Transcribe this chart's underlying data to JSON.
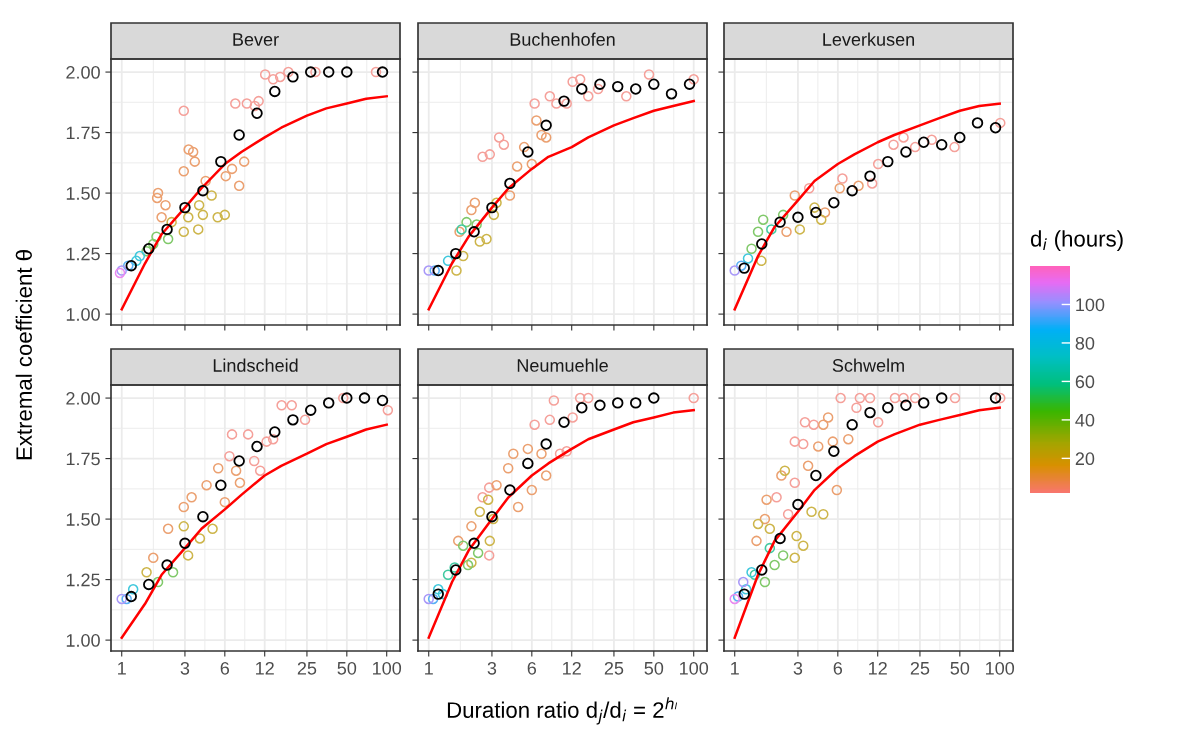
{
  "chart_data": [
    {
      "type": "scatter",
      "title": "Bever",
      "ylabel": "Extremal coefficient θ",
      "log": "x",
      "grid": true,
      "marker": "circle",
      "tick_labels": "y",
      "xlim": [
        0.83,
        126
      ],
      "ylim": [
        0.955,
        2.054
      ],
      "xticks": [
        1,
        3,
        6,
        12,
        25,
        50,
        100
      ],
      "yticks": [
        {
          "value": 1,
          "label": "1.00"
        },
        {
          "value": 1.25,
          "label": "1.25"
        },
        {
          "value": 1.5,
          "label": "1.50"
        },
        {
          "value": 1.75,
          "label": "1.75"
        },
        {
          "value": 2,
          "label": "2.00"
        }
      ],
      "series": [
        {
          "x": [
            2.94,
            7.2,
            8.8,
            10.1,
            10.8,
            12.1,
            13.9,
            15.7,
            18.1,
            29,
            83,
            3.2,
            3.46,
            3.56,
            2.94,
            1.88,
            1.85,
            2.14,
            2.0,
            4.3,
            6.1,
            6.8,
            8.4,
            7.7,
            4.77,
            4.1,
            5.3,
            6.0,
            3.78,
            3.84,
            2.94,
            3.18,
            2.38,
            2.24,
            1.83,
            1.73,
            1.54,
            1.37,
            1.29,
            1.12,
            1.0,
            0.97
          ],
          "values": [
            1.84,
            1.87,
            1.87,
            1.86,
            1.88,
            1.99,
            1.97,
            1.98,
            2.0,
            2.0,
            2.0,
            1.68,
            1.67,
            1.63,
            1.59,
            1.5,
            1.48,
            1.45,
            1.4,
            1.55,
            1.57,
            1.6,
            1.63,
            1.53,
            1.49,
            1.41,
            1.4,
            1.41,
            1.35,
            1.45,
            1.34,
            1.4,
            1.38,
            1.31,
            1.32,
            1.29,
            1.26,
            1.24,
            1.22,
            1.2,
            1.18,
            1.17
          ],
          "colors": [
            "#f5a09a",
            "#f5a09a",
            "#f5a09a",
            "#f5a09a",
            "#f5a09a",
            "#f5a09a",
            "#f5a09a",
            "#f5a09a",
            "#f5a09a",
            "#f5a09a",
            "#f5a09a",
            "#eba070",
            "#eba070",
            "#eba070",
            "#eba070",
            "#eba070",
            "#eba070",
            "#eba070",
            "#eba070",
            "#eba070",
            "#eba070",
            "#eba070",
            "#eba070",
            "#eba070",
            "#cdb54a",
            "#cdb54a",
            "#cdb54a",
            "#cdb54a",
            "#cdb54a",
            "#cdb54a",
            "#cdb54a",
            "#cdb54a",
            "#cdb54a",
            "#80c96a",
            "#80c96a",
            "#80c96a",
            "#80c96a",
            "#40c8dc",
            "#40c8dc",
            "#5ab0f5",
            "#a898f8",
            "#e98af0"
          ]
        },
        {
          "color": "#000000",
          "x": [
            1.18,
            1.6,
            2.2,
            3,
            4.1,
            5.6,
            7.7,
            10.5,
            14.3,
            19.6,
            26.7,
            36.5,
            50,
            93
          ],
          "values": [
            1.2,
            1.27,
            1.35,
            1.44,
            1.51,
            1.63,
            1.74,
            1.83,
            1.92,
            1.98,
            2.0,
            2.0,
            2.0,
            2.0
          ]
        },
        {
          "type": "line",
          "marker": "none",
          "color": "#ff0000",
          "x": [
            1,
            1.5,
            2,
            3,
            4,
            6,
            8,
            12,
            16,
            25,
            35,
            50,
            70,
            100
          ],
          "values": [
            1.02,
            1.21,
            1.33,
            1.44,
            1.52,
            1.62,
            1.67,
            1.73,
            1.77,
            1.82,
            1.85,
            1.87,
            1.89,
            1.9
          ]
        }
      ]
    },
    {
      "type": "scatter",
      "title": "Buchenhofen",
      "log": "x",
      "grid": true,
      "marker": "circle",
      "tick_labels": false,
      "xlim": [
        0.83,
        126
      ],
      "ylim": [
        0.955,
        2.054
      ],
      "xticks": [
        1,
        3,
        6,
        12,
        25,
        50,
        100
      ],
      "yticks": [
        1,
        1.25,
        1.5,
        1.75,
        2
      ],
      "series": [
        {
          "x": [
            6.3,
            8.2,
            9.2,
            11,
            12.2,
            13.9,
            16,
            19,
            31,
            46,
            100,
            2.55,
            2.89,
            3.4,
            3.69,
            6.5,
            7.1,
            7.7,
            5.25,
            4.65,
            6.0,
            4.1,
            2.23,
            2.1,
            1.71,
            3.25,
            3.1,
            2.73,
            2.43,
            1.82,
            1.62,
            1.93,
            2.3,
            1.77,
            1.4,
            1.11,
            1.0
          ],
          "values": [
            1.87,
            1.9,
            1.87,
            1.87,
            1.96,
            1.97,
            1.9,
            1.93,
            1.9,
            1.99,
            1.97,
            1.65,
            1.66,
            1.73,
            1.7,
            1.8,
            1.74,
            1.73,
            1.69,
            1.61,
            1.62,
            1.49,
            1.46,
            1.43,
            1.34,
            1.46,
            1.41,
            1.31,
            1.3,
            1.24,
            1.18,
            1.38,
            1.37,
            1.35,
            1.22,
            1.18,
            1.18
          ],
          "colors": [
            "#f5a09a",
            "#f5a09a",
            "#f5a09a",
            "#f5a09a",
            "#f5a09a",
            "#f5a09a",
            "#f5a09a",
            "#f5a09a",
            "#f5a09a",
            "#f5a09a",
            "#f5a09a",
            "#f5a09a",
            "#f5a09a",
            "#f5a09a",
            "#f5a09a",
            "#eba070",
            "#eba070",
            "#eba070",
            "#eba070",
            "#eba070",
            "#eba070",
            "#eba070",
            "#eba070",
            "#eba070",
            "#eba070",
            "#cdb54a",
            "#cdb54a",
            "#cdb54a",
            "#cdb54a",
            "#cdb54a",
            "#cdb54a",
            "#80c96a",
            "#80c96a",
            "#40c9a0",
            "#40c8dc",
            "#5ab0f5",
            "#a898f8"
          ]
        },
        {
          "color": "#000000",
          "x": [
            1.18,
            1.6,
            2.2,
            3,
            4.1,
            5.6,
            7.7,
            10.5,
            14.3,
            19.6,
            26.7,
            36.5,
            50,
            68,
            93
          ],
          "values": [
            1.18,
            1.25,
            1.34,
            1.44,
            1.54,
            1.67,
            1.78,
            1.88,
            1.93,
            1.95,
            1.94,
            1.93,
            1.95,
            1.91,
            1.95
          ]
        },
        {
          "type": "line",
          "marker": "none",
          "color": "#ff0000",
          "x": [
            1,
            1.5,
            2,
            3,
            4,
            6,
            8,
            12,
            16,
            25,
            35,
            50,
            70,
            100
          ],
          "values": [
            1.02,
            1.21,
            1.32,
            1.44,
            1.52,
            1.6,
            1.65,
            1.69,
            1.73,
            1.78,
            1.81,
            1.84,
            1.86,
            1.88
          ]
        }
      ]
    },
    {
      "type": "scatter",
      "title": "Leverkusen",
      "log": "x",
      "grid": true,
      "marker": "circle",
      "tick_labels": false,
      "xlim": [
        0.83,
        126
      ],
      "ylim": [
        0.955,
        2.054
      ],
      "xticks": [
        1,
        3,
        6,
        12,
        25,
        50,
        100
      ],
      "yticks": [
        1,
        1.25,
        1.5,
        1.75,
        2
      ],
      "clim": [
        2,
        120
      ],
      "clabel": "d$_{i}$ (hours)",
      "cticks": [
        20,
        40,
        60,
        80,
        100
      ],
      "series": [
        {
          "x": [
            101,
            45.6,
            30.7,
            23,
            18.8,
            15.8,
            12.1,
            10.9,
            6.5,
            3.65,
            8.6,
            6.2,
            4.8,
            2.84,
            2.46,
            4.0,
            4.5,
            3.1,
            1.59,
            1.64,
            1.5,
            2.32,
            1.34,
            1.89,
            1.26,
            1.12,
            1.0
          ],
          "values": [
            1.79,
            1.69,
            1.72,
            1.69,
            1.73,
            1.7,
            1.62,
            1.54,
            1.56,
            1.52,
            1.53,
            1.52,
            1.42,
            1.49,
            1.34,
            1.44,
            1.39,
            1.35,
            1.22,
            1.39,
            1.34,
            1.41,
            1.27,
            1.35,
            1.23,
            1.2,
            1.18
          ],
          "colors": [
            "#f5a09a",
            "#f5a09a",
            "#f5a09a",
            "#f5a09a",
            "#f5a09a",
            "#f5a09a",
            "#f5a09a",
            "#f5a09a",
            "#f5a09a",
            "#f5a09a",
            "#eba070",
            "#eba070",
            "#eba070",
            "#eba070",
            "#eba070",
            "#cdb54a",
            "#cdb54a",
            "#cdb54a",
            "#cdb54a",
            "#80c96a",
            "#80c96a",
            "#80c96a",
            "#80c96a",
            "#40c9a0",
            "#40c8dc",
            "#5ab0f5",
            "#a898f8"
          ]
        },
        {
          "color": "#000000",
          "x": [
            1.18,
            1.6,
            2.2,
            3,
            4.1,
            5.6,
            7.7,
            10.5,
            14.3,
            19.6,
            26.7,
            36.5,
            50,
            68,
            93
          ],
          "values": [
            1.19,
            1.29,
            1.38,
            1.4,
            1.42,
            1.46,
            1.51,
            1.57,
            1.63,
            1.67,
            1.71,
            1.7,
            1.73,
            1.79,
            1.77
          ]
        },
        {
          "type": "line",
          "marker": "none",
          "color": "#ff0000",
          "x": [
            1,
            1.5,
            2,
            3,
            4,
            6,
            8,
            12,
            16,
            25,
            35,
            50,
            70,
            100
          ],
          "values": [
            1.02,
            1.24,
            1.36,
            1.47,
            1.55,
            1.62,
            1.66,
            1.71,
            1.74,
            1.78,
            1.81,
            1.84,
            1.86,
            1.87
          ]
        }
      ]
    },
    {
      "type": "scatter",
      "title": "Lindscheid",
      "log": "x",
      "grid": true,
      "marker": "circle",
      "xlim": [
        0.83,
        126
      ],
      "ylim": [
        0.955,
        2.054
      ],
      "xticks": [
        1,
        3,
        6,
        12,
        25,
        50,
        100
      ],
      "yticks": [
        {
          "value": 1,
          "label": "1.00"
        },
        {
          "value": 1.25,
          "label": "1.25"
        },
        {
          "value": 1.5,
          "label": "1.50"
        },
        {
          "value": 1.75,
          "label": "1.75"
        },
        {
          "value": 2,
          "label": "2.00"
        }
      ],
      "series": [
        {
          "x": [
            102,
            47,
            24.2,
            19.2,
            16.1,
            13.9,
            12.4,
            11.1,
            10,
            9.0,
            6.8,
            6.5,
            7.8,
            7.3,
            5.35,
            4.37,
            3.37,
            2.94,
            2.24,
            1.73,
            6.0,
            4.85,
            3.89,
            2.94,
            3.17,
            1.54,
            2.18,
            2.44,
            1.88,
            1.22,
            1.09,
            1.0
          ],
          "values": [
            1.95,
            2.0,
            1.91,
            1.97,
            1.97,
            1.83,
            1.82,
            1.7,
            1.74,
            1.85,
            1.85,
            1.76,
            1.65,
            1.7,
            1.71,
            1.64,
            1.59,
            1.55,
            1.46,
            1.34,
            1.57,
            1.46,
            1.42,
            1.47,
            1.35,
            1.28,
            null,
            1.28,
            1.24,
            1.21,
            1.17,
            1.17
          ],
          "colors": [
            "#f5a09a",
            "#f5a09a",
            "#f5a09a",
            "#f5a09a",
            "#f5a09a",
            "#f5a09a",
            "#f5a09a",
            "#f5a09a",
            "#f5a09a",
            "#f5a09a",
            "#f5a09a",
            "#f5a09a",
            "#eba070",
            "#eba070",
            "#eba070",
            "#eba070",
            "#eba070",
            "#eba070",
            "#eba070",
            "#eba070",
            "#eba070",
            "#cdb54a",
            "#cdb54a",
            "#cdb54a",
            "#cdb54a",
            "#cdb54a",
            "#cdb54a",
            "#80c96a",
            "#80c96a",
            "#40c8dc",
            "#5ab0f5",
            "#a898f8"
          ]
        },
        {
          "color": "#000000",
          "x": [
            1.18,
            1.6,
            2.2,
            3,
            4.1,
            5.6,
            7.7,
            10.5,
            14.3,
            19.6,
            26.7,
            36.5,
            50,
            68,
            93
          ],
          "values": [
            1.18,
            1.23,
            1.31,
            1.4,
            1.51,
            1.64,
            1.74,
            1.8,
            1.86,
            1.91,
            1.95,
            1.98,
            2.0,
            2.0,
            1.99
          ]
        },
        {
          "type": "line",
          "marker": "none",
          "color": "#ff0000",
          "x": [
            1,
            1.5,
            2,
            3,
            4,
            6,
            8,
            12,
            16,
            25,
            35,
            50,
            70,
            100
          ],
          "values": [
            1.01,
            1.15,
            1.27,
            1.38,
            1.46,
            1.54,
            1.6,
            1.68,
            1.72,
            1.77,
            1.81,
            1.84,
            1.87,
            1.89
          ]
        }
      ]
    },
    {
      "type": "scatter",
      "title": "Neumuehle",
      "xlabel": "Duration ratio d$_{j}$/d$_{i}$ = 2$^{hₗ}$",
      "log": "x",
      "grid": true,
      "marker": "circle",
      "tick_labels": "x",
      "xlim": [
        0.83,
        126
      ],
      "ylim": [
        0.955,
        2.054
      ],
      "xticks": [
        1,
        3,
        6,
        12,
        25,
        50,
        100
      ],
      "yticks": [
        1,
        1.25,
        1.5,
        1.75,
        2
      ],
      "series": [
        {
          "x": [
            100,
            16,
            13.9,
            8.8,
            12.2,
            8.2,
            6.3,
            9.8,
            11,
            2.86,
            2.55,
            2.86,
            7.7,
            7.1,
            5.6,
            4.35,
            3.98,
            3.25,
            6.0,
            4.73,
            2.1,
            1.67,
            2.81,
            2.43,
            3.07,
            2.89,
            2.1,
            2.36,
            1.98,
            1.82,
            1.57,
            1.4,
            1.28,
            1.18,
            1.08,
            1.0
          ],
          "values": [
            2.0,
            2.0,
            2.0,
            1.99,
            1.92,
            1.91,
            1.89,
            1.77,
            1.78,
            1.35,
            1.59,
            1.63,
            1.68,
            1.77,
            1.79,
            1.77,
            1.71,
            1.64,
            1.62,
            1.55,
            1.47,
            1.41,
            1.58,
            1.53,
            1.5,
            1.41,
            1.32,
            1.36,
            1.31,
            1.39,
            1.3,
            1.27,
            1.19,
            1.21,
            1.17,
            1.17
          ],
          "colors": [
            "#f5a09a",
            "#f5a09a",
            "#f5a09a",
            "#f5a09a",
            "#f5a09a",
            "#f5a09a",
            "#f5a09a",
            "#f5a09a",
            "#f5a09a",
            "#f5a09a",
            "#f5a09a",
            "#f5a09a",
            "#eba070",
            "#eba070",
            "#eba070",
            "#eba070",
            "#eba070",
            "#eba070",
            "#eba070",
            "#eba070",
            "#eba070",
            "#eba070",
            "#cdb54a",
            "#cdb54a",
            "#cdb54a",
            "#cdb54a",
            "#cdb54a",
            "#80c96a",
            "#80c96a",
            "#80c96a",
            "#40c9a0",
            "#40c9a0",
            "#40c8dc",
            "#40c8dc",
            "#5ab0f5",
            "#a898f8"
          ]
        },
        {
          "color": "#000000",
          "x": [
            1.18,
            1.6,
            2.2,
            3,
            4.1,
            5.6,
            7.7,
            10.5,
            14.3,
            19.6,
            26.7,
            36.5,
            50
          ],
          "values": [
            1.19,
            1.29,
            1.4,
            1.51,
            1.62,
            1.73,
            1.81,
            1.9,
            1.96,
            1.97,
            1.98,
            1.98,
            2.0
          ]
        },
        {
          "type": "line",
          "marker": "none",
          "color": "#ff0000",
          "x": [
            1,
            1.5,
            2,
            3,
            4,
            6,
            8,
            12,
            16,
            25,
            35,
            50,
            70,
            100
          ],
          "values": [
            1.01,
            1.24,
            1.37,
            1.5,
            1.59,
            1.68,
            1.73,
            1.79,
            1.83,
            1.87,
            1.9,
            1.92,
            1.94,
            1.95
          ]
        }
      ]
    },
    {
      "type": "scatter",
      "title": "Schwelm",
      "log": "x",
      "grid": true,
      "marker": "circle",
      "tick_labels": "x",
      "xlim": [
        0.83,
        126
      ],
      "ylim": [
        0.955,
        2.054
      ],
      "xticks": [
        1,
        3,
        6,
        12,
        25,
        50,
        100
      ],
      "yticks": [
        1,
        1.25,
        1.5,
        1.75,
        2
      ],
      "series": [
        {
          "x": [
            6.3,
            8.8,
            10.5,
            16.2,
            18.8,
            23,
            46,
            101,
            8.3,
            12.1,
            3.39,
            3.95,
            2.84,
            3.29,
            2.53,
            2.84,
            2.07,
            5.07,
            4.66,
            7.2,
            4.27,
            5.5,
            3.58,
            2.25,
            5.9,
            1.74,
            1.69,
            1.46,
            2.39,
            4.66,
            3.8,
            1.5,
            1.84,
            2.93,
            3.29,
            2.84,
            2.32,
            2.0,
            1.69,
            1.84,
            1.42,
            1.34,
            1.22,
            1.16,
            1.06,
            1.0
          ],
          "values": [
            2.0,
            2.0,
            2.0,
            2.0,
            2.0,
            2.0,
            2.0,
            2.0,
            1.96,
            1.9,
            1.9,
            1.89,
            1.82,
            1.81,
            1.52,
            1.65,
            1.59,
            1.92,
            1.89,
            1.83,
            1.8,
            1.82,
            1.72,
            1.68,
            1.62,
            1.58,
            1.5,
            1.41,
            1.7,
            1.52,
            1.53,
            1.48,
            1.46,
            1.43,
            1.39,
            1.34,
            1.35,
            1.31,
            1.24,
            1.38,
            1.27,
            1.28,
            1.21,
            1.24,
            1.18,
            1.17
          ],
          "colors": [
            "#f5a09a",
            "#f5a09a",
            "#f5a09a",
            "#f5a09a",
            "#f5a09a",
            "#f5a09a",
            "#f5a09a",
            "#f5a09a",
            "#f5a09a",
            "#f5a09a",
            "#f5a09a",
            "#f5a09a",
            "#f5a09a",
            "#f5a09a",
            "#f5a09a",
            "#f5a09a",
            "#f5a09a",
            "#eba070",
            "#eba070",
            "#eba070",
            "#eba070",
            "#eba070",
            "#eba070",
            "#eba070",
            "#eba070",
            "#eba070",
            "#eba070",
            "#eba070",
            "#cdb54a",
            "#cdb54a",
            "#cdb54a",
            "#cdb54a",
            "#cdb54a",
            "#cdb54a",
            "#cdb54a",
            "#cdb54a",
            "#80c96a",
            "#80c96a",
            "#80c96a",
            "#40c9a0",
            "#40c9a0",
            "#40c8dc",
            "#40c8dc",
            "#a898f8",
            "#5ab0f5",
            "#e98af0"
          ]
        },
        {
          "color": "#000000",
          "x": [
            1.18,
            1.6,
            2.2,
            3,
            4.1,
            5.6,
            7.7,
            10.5,
            14.3,
            19.6,
            26.7,
            36.5,
            93
          ],
          "values": [
            1.19,
            1.29,
            1.42,
            1.56,
            1.68,
            1.78,
            1.89,
            1.94,
            1.96,
            1.97,
            1.98,
            2.0,
            2.0
          ]
        },
        {
          "type": "line",
          "marker": "none",
          "color": "#ff0000",
          "x": [
            1,
            1.5,
            2,
            3,
            4,
            6,
            8,
            12,
            16,
            25,
            35,
            50,
            70,
            100
          ],
          "values": [
            1.01,
            1.27,
            1.41,
            1.53,
            1.62,
            1.71,
            1.76,
            1.82,
            1.85,
            1.89,
            1.91,
            1.93,
            1.95,
            1.96
          ]
        }
      ]
    }
  ]
}
